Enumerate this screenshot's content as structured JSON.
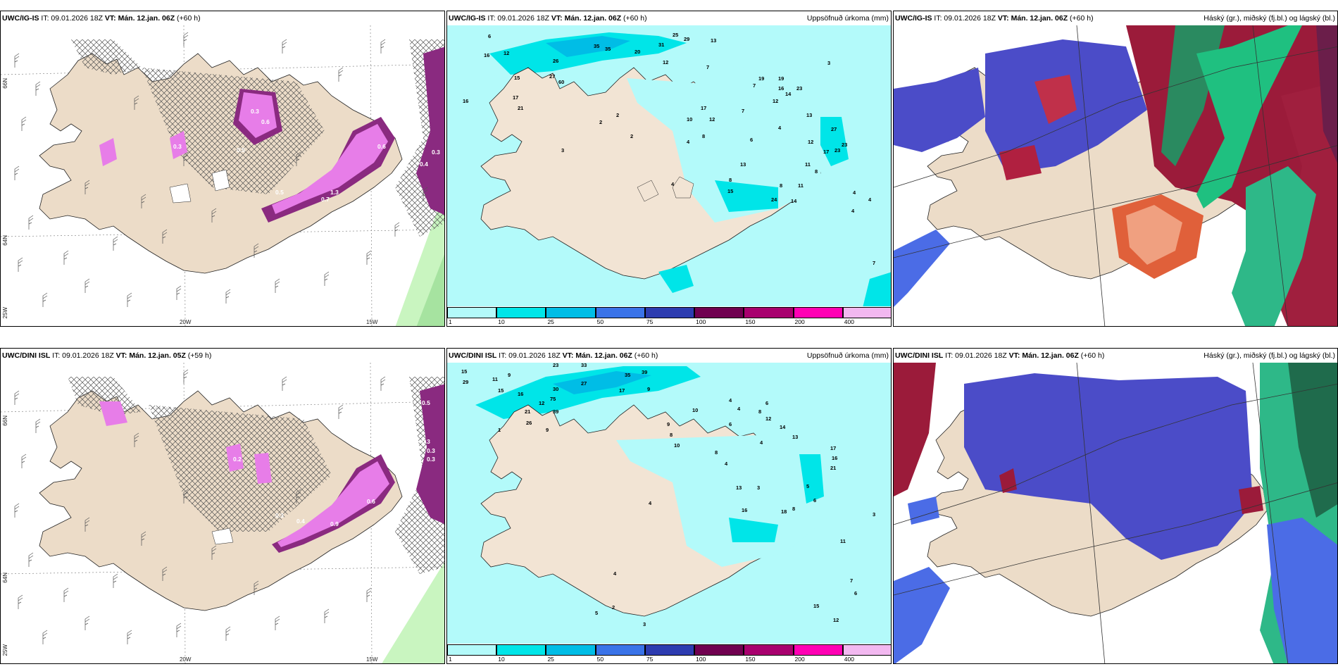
{
  "panels": {
    "p1": {
      "model": "UWC/IG-IS",
      "init": "IT: 09.01.2026 18Z",
      "valid": "VT: Mán. 12.jan. 06Z",
      "lead": "(+60 h)",
      "title": ""
    },
    "p2": {
      "model": "UWC/IG-IS",
      "init": "IT: 09.01.2026 18Z",
      "valid": "VT: Mán. 12.jan. 06Z",
      "lead": "(+60 h)",
      "title": "Uppsöfnuð úrkoma (mm)"
    },
    "p3": {
      "model": "UWC/IG-IS",
      "init": "IT: 09.01.2026 18Z",
      "valid": "VT: Mán. 12.jan. 06Z",
      "lead": "(+60 h)",
      "title": "Háský (gr.), miðský (fj.bl.) og lágský (bl.)"
    },
    "p4": {
      "model": "UWC/DINI ISL",
      "init": "IT: 09.01.2026 18Z",
      "valid": "VT: Mán. 12.jan. 05Z",
      "lead": "(+59 h)",
      "title": ""
    },
    "p5": {
      "model": "UWC/DINI ISL",
      "init": "IT: 09.01.2026 18Z",
      "valid": "VT: Mán. 12.jan. 06Z",
      "lead": "(+60 h)",
      "title": "Uppsöfnuð úrkoma (mm)"
    },
    "p6": {
      "model": "UWC/DINI ISL",
      "init": "IT: 09.01.2026 18Z",
      "valid": "VT: Mán. 12.jan. 06Z",
      "lead": "(+60 h)",
      "title": "Háský (gr.), miðský (fj.bl.) og lágský (bl.)"
    }
  },
  "axes": {
    "lat_66": "66N",
    "lat_64": "64N",
    "lon_25": "25W",
    "lon_20": "20W",
    "lon_15": "15W"
  },
  "colorbar": {
    "ticks": [
      "1",
      "10",
      "25",
      "50",
      "75",
      "100",
      "150",
      "200",
      "400"
    ],
    "colors": [
      "#b3fafa",
      "#00e5e8",
      "#00bde6",
      "#3a73e8",
      "#2d3cb0",
      "#700050",
      "#a8006e",
      "#ff00b4",
      "#f2b8f0"
    ]
  },
  "precip_labels_top": [
    "6",
    "16",
    "12",
    "25",
    "29",
    "13",
    "35",
    "20",
    "31",
    "35",
    "16",
    "15",
    "26",
    "27",
    "17",
    "60",
    "21",
    "12",
    "7",
    "7",
    "3",
    "19",
    "19",
    "23",
    "16",
    "14",
    "12",
    "17",
    "13",
    "10",
    "12",
    "7",
    "4",
    "27",
    "23",
    "8",
    "4",
    "6",
    "12",
    "17",
    "23",
    "11",
    "8",
    "13",
    "8",
    "11",
    "15",
    "8",
    "24",
    "4",
    "14",
    "4",
    "7",
    "13",
    "4",
    "2",
    "3",
    "2",
    "2",
    "4"
  ],
  "precip_labels_bottom": [
    "15",
    "23",
    "33",
    "9",
    "29",
    "11",
    "35",
    "39",
    "15",
    "27",
    "17",
    "9",
    "16",
    "12",
    "30",
    "75",
    "21",
    "39",
    "26",
    "9",
    "1",
    "4",
    "6",
    "10",
    "4",
    "8",
    "6",
    "12",
    "14",
    "13",
    "17",
    "16",
    "21",
    "4",
    "8",
    "9",
    "10",
    "13",
    "16",
    "18",
    "4",
    "3",
    "8",
    "8",
    "4",
    "5",
    "6",
    "4",
    "3",
    "11",
    "15",
    "7",
    "6",
    "2",
    "5",
    "3",
    "12"
  ],
  "snow_labels_top": [
    "0.3",
    "0.4",
    "1.3",
    "0.5",
    "0.7",
    "0.3",
    "0.6",
    "0.2",
    "0.5",
    "0.9",
    "0.6",
    "0.3"
  ],
  "snow_labels_bottom": [
    "0.5",
    "0.3",
    "0.3",
    "0.3",
    "2.3",
    "0.7",
    "0.4",
    "0.3",
    "0.9",
    "0.6",
    "0.2"
  ]
}
